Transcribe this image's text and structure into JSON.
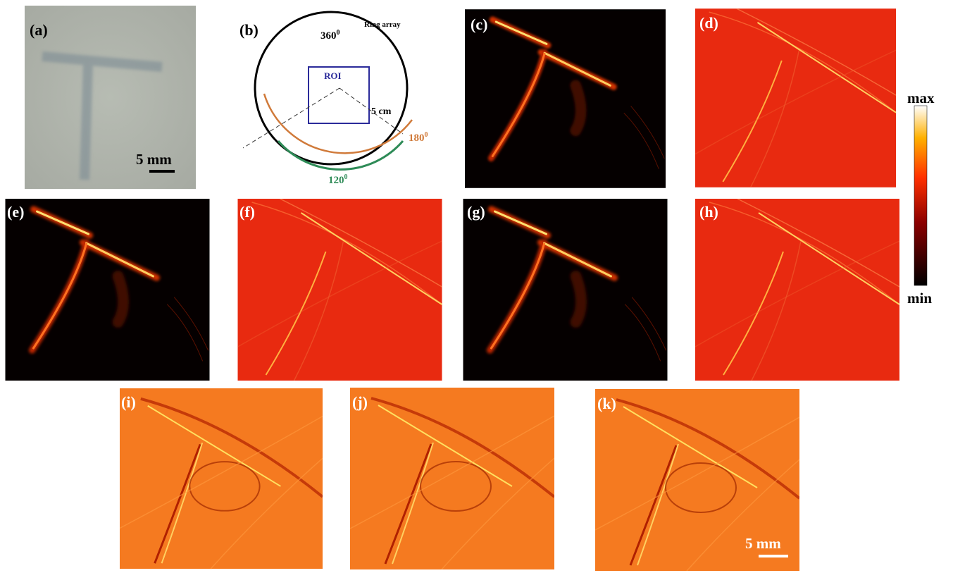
{
  "panels": [
    {
      "label": "(a)",
      "scale_bar": "5 mm"
    },
    {
      "label": "(b)"
    },
    {
      "label": "(c)"
    },
    {
      "label": "(d)"
    },
    {
      "label": "(e)"
    },
    {
      "label": "(f)"
    },
    {
      "label": "(g)"
    },
    {
      "label": "(h)"
    },
    {
      "label": "(i)"
    },
    {
      "label": "(j)"
    },
    {
      "label": "(k)",
      "scale_bar": "5 mm"
    }
  ],
  "diagram": {
    "ring": "Ring array",
    "full_angle": {
      "value": "360",
      "sup": "0"
    },
    "roi": "ROI",
    "radius": "5 cm",
    "angle_orange": {
      "value": "180",
      "sup": "0"
    },
    "angle_green": {
      "value": "120",
      "sup": "0"
    }
  },
  "colorbar": {
    "max": "max",
    "min": "min"
  }
}
